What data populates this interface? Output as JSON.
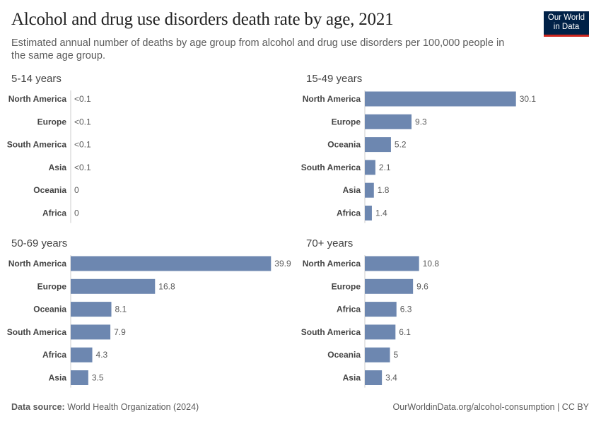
{
  "header": {
    "title": "Alcohol and drug use disorders death rate by age, 2021",
    "subtitle": "Estimated annual number of deaths by age group from alcohol and drug use disorders per 100,000 people in the same age group."
  },
  "logo": {
    "text": "Our World in Data",
    "colors": {
      "background": "#002147",
      "accent": "#ce261e"
    }
  },
  "footer": {
    "source_label": "Data source:",
    "source": "World Health Organization (2024)",
    "url": "OurWorldinData.org/alcohol-consumption | CC BY"
  },
  "chart_data": [
    {
      "type": "bar",
      "orientation": "horizontal",
      "title": "5-14 years",
      "categories": [
        "North America",
        "Europe",
        "South America",
        "Asia",
        "Oceania",
        "Africa"
      ],
      "values": [
        null,
        null,
        null,
        null,
        0,
        0
      ],
      "value_labels": [
        "<0.1",
        "<0.1",
        "<0.1",
        "<0.1",
        "0",
        "0"
      ],
      "color": "#6d87b0"
    },
    {
      "type": "bar",
      "orientation": "horizontal",
      "title": "15-49 years",
      "categories": [
        "North America",
        "Europe",
        "Oceania",
        "South America",
        "Asia",
        "Africa"
      ],
      "values": [
        30.1,
        9.3,
        5.2,
        2.1,
        1.8,
        1.4
      ],
      "value_labels": [
        "30.1",
        "9.3",
        "5.2",
        "2.1",
        "1.8",
        "1.4"
      ],
      "color": "#6d87b0"
    },
    {
      "type": "bar",
      "orientation": "horizontal",
      "title": "50-69 years",
      "categories": [
        "North America",
        "Europe",
        "Oceania",
        "South America",
        "Africa",
        "Asia"
      ],
      "values": [
        39.9,
        16.8,
        8.1,
        7.9,
        4.3,
        3.5
      ],
      "value_labels": [
        "39.9",
        "16.8",
        "8.1",
        "7.9",
        "4.3",
        "3.5"
      ],
      "color": "#6d87b0"
    },
    {
      "type": "bar",
      "orientation": "horizontal",
      "title": "70+ years",
      "categories": [
        "North America",
        "Europe",
        "Africa",
        "South America",
        "Oceania",
        "Asia"
      ],
      "values": [
        10.8,
        9.6,
        6.3,
        6.1,
        5,
        3.4
      ],
      "value_labels": [
        "10.8",
        "9.6",
        "6.3",
        "6.1",
        "5",
        "3.4"
      ],
      "color": "#6d87b0"
    }
  ]
}
